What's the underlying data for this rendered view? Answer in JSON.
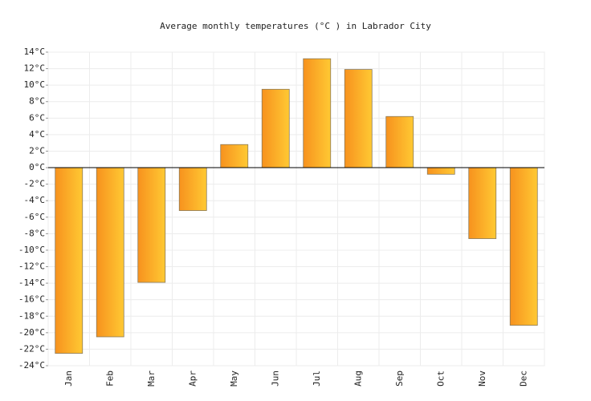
{
  "chart_data": {
    "type": "bar",
    "title": "Average monthly temperatures (°C ) in Labrador City",
    "categories": [
      "Jan",
      "Feb",
      "Mar",
      "Apr",
      "May",
      "Jun",
      "Jul",
      "Aug",
      "Sep",
      "Oct",
      "Nov",
      "Dec"
    ],
    "values": [
      -22.5,
      -20.5,
      -13.9,
      -5.2,
      2.8,
      9.5,
      13.2,
      11.9,
      6.2,
      -0.8,
      -8.6,
      -19.1
    ],
    "color": [
      "#f7921e",
      "#ffc933"
    ],
    "ylim": [
      -24,
      14
    ],
    "yticks": [
      {
        "value": -24,
        "label": "-24°C"
      },
      {
        "value": -22,
        "label": "-22°C"
      },
      {
        "value": -20,
        "label": "-20°C"
      },
      {
        "value": -18,
        "label": "-18°C"
      },
      {
        "value": -16,
        "label": "-16°C"
      },
      {
        "value": -14,
        "label": "-14°C"
      },
      {
        "value": -12,
        "label": "-12°C"
      },
      {
        "value": -10,
        "label": "-10°C"
      },
      {
        "value": -8,
        "label": "-8°C"
      },
      {
        "value": -6,
        "label": "-6°C"
      },
      {
        "value": -4,
        "label": "-4°C"
      },
      {
        "value": -2,
        "label": "-2°C"
      },
      {
        "value": 0,
        "label": "0°C"
      },
      {
        "value": 2,
        "label": "2°C"
      },
      {
        "value": 4,
        "label": "4°C"
      },
      {
        "value": 6,
        "label": "6°C"
      },
      {
        "value": 8,
        "label": "8°C"
      },
      {
        "value": 10,
        "label": "10°C"
      },
      {
        "value": 12,
        "label": "12°C"
      },
      {
        "value": 14,
        "label": "14°C"
      }
    ],
    "grid": true
  }
}
